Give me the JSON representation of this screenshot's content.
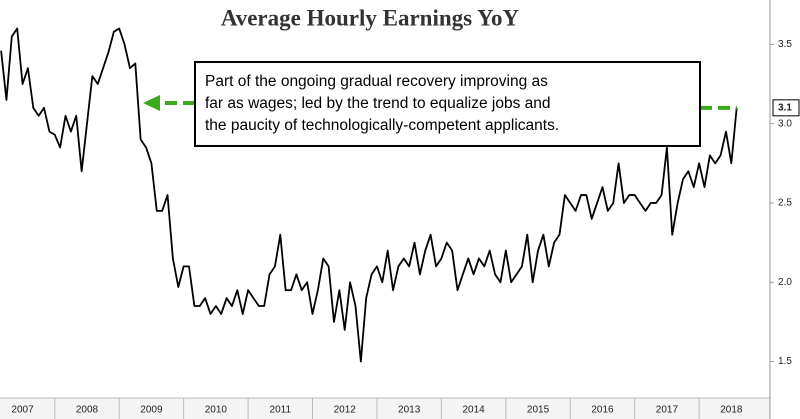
{
  "chart_data": {
    "type": "line",
    "title": "Average Hourly Earnings YoY",
    "annotation": [
      "Part of the ongoing gradual recovery improving as",
      "far as wages; led by the trend to equalize jobs and",
      "the paucity of technologically-competent applicants."
    ],
    "color": "#000000",
    "annotation_arrow_color": "#3aaa1c",
    "xlim": [
      2007.15,
      2019.1
    ],
    "ylim": [
      1.27,
      3.78
    ],
    "xticks": [
      {
        "value": 2007.5,
        "label": "2007"
      },
      {
        "value": 2008.5,
        "label": "2008"
      },
      {
        "value": 2009.5,
        "label": "2009"
      },
      {
        "value": 2010.5,
        "label": "2010"
      },
      {
        "value": 2011.5,
        "label": "2011"
      },
      {
        "value": 2012.5,
        "label": "2012"
      },
      {
        "value": 2013.5,
        "label": "2013"
      },
      {
        "value": 2014.5,
        "label": "2014"
      },
      {
        "value": 2015.5,
        "label": "2015"
      },
      {
        "value": 2016.5,
        "label": "2016"
      },
      {
        "value": 2017.5,
        "label": "2017"
      },
      {
        "value": 2018.5,
        "label": "2018"
      }
    ],
    "yticks": [
      1.5,
      {
        "value": 2.0,
        "label": "2.0"
      },
      2.5,
      {
        "value": 3.0,
        "label": "3.0"
      },
      3.5
    ],
    "x": [
      2007.167,
      2007.25,
      2007.333,
      2007.417,
      2007.5,
      2007.583,
      2007.667,
      2007.75,
      2007.833,
      2007.917,
      2008,
      2008.083,
      2008.167,
      2008.25,
      2008.333,
      2008.417,
      2008.5,
      2008.583,
      2008.667,
      2008.75,
      2008.833,
      2008.917,
      2009,
      2009.083,
      2009.167,
      2009.25,
      2009.333,
      2009.417,
      2009.5,
      2009.583,
      2009.667,
      2009.75,
      2009.833,
      2009.917,
      2010,
      2010.083,
      2010.167,
      2010.25,
      2010.333,
      2010.417,
      2010.5,
      2010.583,
      2010.667,
      2010.75,
      2010.833,
      2010.917,
      2011,
      2011.083,
      2011.167,
      2011.25,
      2011.333,
      2011.417,
      2011.5,
      2011.583,
      2011.667,
      2011.75,
      2011.833,
      2011.917,
      2012,
      2012.083,
      2012.167,
      2012.25,
      2012.333,
      2012.417,
      2012.5,
      2012.583,
      2012.667,
      2012.75,
      2012.833,
      2012.917,
      2013,
      2013.083,
      2013.167,
      2013.25,
      2013.333,
      2013.417,
      2013.5,
      2013.583,
      2013.667,
      2013.75,
      2013.833,
      2013.917,
      2014,
      2014.083,
      2014.167,
      2014.25,
      2014.333,
      2014.417,
      2014.5,
      2014.583,
      2014.667,
      2014.75,
      2014.833,
      2014.917,
      2015,
      2015.083,
      2015.167,
      2015.25,
      2015.333,
      2015.417,
      2015.5,
      2015.583,
      2015.667,
      2015.75,
      2015.833,
      2015.917,
      2016,
      2016.083,
      2016.167,
      2016.25,
      2016.333,
      2016.417,
      2016.5,
      2016.583,
      2016.667,
      2016.75,
      2016.833,
      2016.917,
      2017,
      2017.083,
      2017.167,
      2017.25,
      2017.333,
      2017.417,
      2017.5,
      2017.583,
      2017.667,
      2017.75,
      2017.833,
      2017.917,
      2018,
      2018.083,
      2018.167,
      2018.25,
      2018.333,
      2018.417,
      2018.5,
      2018.583
    ],
    "values": [
      3.46,
      3.15,
      3.55,
      3.6,
      3.25,
      3.35,
      3.1,
      3.05,
      3.1,
      2.95,
      2.93,
      2.85,
      3.05,
      2.95,
      3.05,
      2.7,
      3.0,
      3.3,
      3.25,
      3.35,
      3.45,
      3.58,
      3.6,
      3.5,
      3.35,
      3.38,
      2.9,
      2.85,
      2.75,
      2.45,
      2.45,
      2.55,
      2.15,
      1.97,
      2.1,
      2.1,
      1.85,
      1.85,
      1.9,
      1.8,
      1.85,
      1.8,
      1.9,
      1.85,
      1.95,
      1.8,
      1.95,
      1.9,
      1.85,
      1.85,
      2.05,
      2.1,
      2.3,
      1.95,
      1.95,
      2.05,
      1.95,
      2.0,
      1.8,
      1.95,
      2.15,
      2.1,
      1.75,
      1.95,
      1.7,
      2.0,
      1.85,
      1.5,
      1.9,
      2.05,
      2.1,
      2.0,
      2.2,
      1.95,
      2.1,
      2.15,
      2.1,
      2.25,
      2.05,
      2.2,
      2.3,
      2.1,
      2.15,
      2.25,
      2.2,
      1.95,
      2.05,
      2.15,
      2.05,
      2.15,
      2.1,
      2.2,
      2.05,
      2.0,
      2.2,
      2.0,
      2.05,
      2.1,
      2.3,
      2.0,
      2.2,
      2.3,
      2.1,
      2.25,
      2.3,
      2.55,
      2.5,
      2.45,
      2.55,
      2.55,
      2.4,
      2.5,
      2.6,
      2.45,
      2.5,
      2.75,
      2.5,
      2.55,
      2.55,
      2.5,
      2.45,
      2.5,
      2.5,
      2.55,
      2.85,
      2.3,
      2.5,
      2.65,
      2.7,
      2.6,
      2.75,
      2.6,
      2.8,
      2.75,
      2.8,
      2.95,
      2.75,
      3.1
    ]
  }
}
